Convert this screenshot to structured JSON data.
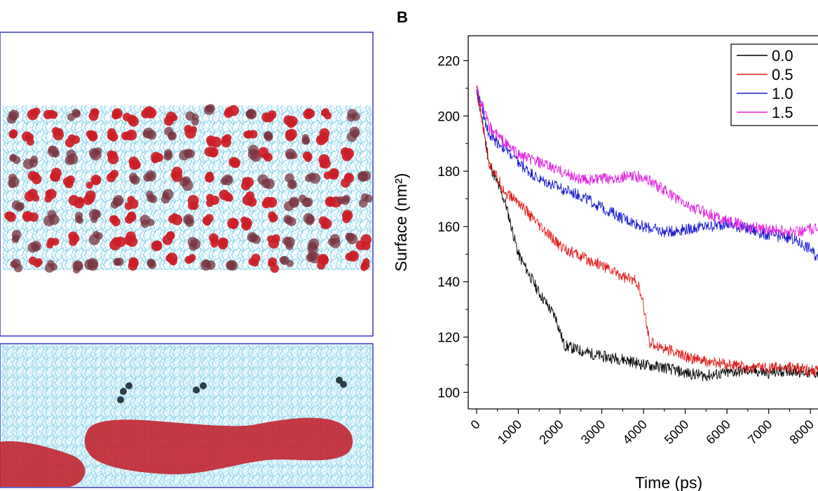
{
  "figure": {
    "panel_label": "B"
  },
  "chart_data": {
    "type": "line",
    "xlabel": "Time (ps)",
    "ylabel": "Surface (nm²)",
    "xlim": [
      -200,
      8400
    ],
    "ylim": [
      94,
      229
    ],
    "xticks": [
      0,
      1000,
      2000,
      3000,
      4000,
      5000,
      6000,
      7000,
      8000
    ],
    "yticks": [
      100,
      120,
      140,
      160,
      180,
      200,
      220
    ],
    "grid": false,
    "legend_position": "top-right",
    "series": [
      {
        "name": "0.0",
        "color": "#000000",
        "points": [
          [
            0,
            210
          ],
          [
            300,
            183
          ],
          [
            700,
            168
          ],
          [
            1000,
            150
          ],
          [
            1500,
            136
          ],
          [
            1900,
            127
          ],
          [
            2100,
            117
          ],
          [
            2500,
            115
          ],
          [
            3000,
            113
          ],
          [
            3500,
            112
          ],
          [
            4000,
            110
          ],
          [
            4500,
            109
          ],
          [
            5000,
            107
          ],
          [
            5500,
            106
          ],
          [
            6000,
            107
          ],
          [
            6500,
            108
          ],
          [
            7000,
            107
          ],
          [
            7500,
            108
          ],
          [
            8000,
            107
          ],
          [
            8400,
            107
          ]
        ]
      },
      {
        "name": "0.5",
        "color": "#e01818",
        "points": [
          [
            0,
            210
          ],
          [
            300,
            183
          ],
          [
            700,
            172
          ],
          [
            1000,
            169
          ],
          [
            1500,
            160
          ],
          [
            2000,
            153
          ],
          [
            2500,
            149
          ],
          [
            3000,
            146
          ],
          [
            3500,
            142
          ],
          [
            3850,
            140
          ],
          [
            4000,
            131
          ],
          [
            4150,
            118
          ],
          [
            4500,
            116
          ],
          [
            5000,
            113
          ],
          [
            5500,
            111
          ],
          [
            6000,
            110
          ],
          [
            6500,
            109
          ],
          [
            7000,
            109
          ],
          [
            7500,
            109
          ],
          [
            8000,
            108
          ],
          [
            8400,
            108
          ]
        ]
      },
      {
        "name": "1.0",
        "color": "#1a1ad0",
        "points": [
          [
            0,
            210
          ],
          [
            300,
            193
          ],
          [
            700,
            188
          ],
          [
            1000,
            183
          ],
          [
            1500,
            177
          ],
          [
            2000,
            174
          ],
          [
            2500,
            171
          ],
          [
            3000,
            167
          ],
          [
            3500,
            163
          ],
          [
            4000,
            160
          ],
          [
            4500,
            158
          ],
          [
            5000,
            159
          ],
          [
            5500,
            160
          ],
          [
            6000,
            161
          ],
          [
            6500,
            159
          ],
          [
            7000,
            157
          ],
          [
            7500,
            156
          ],
          [
            8000,
            152
          ],
          [
            8400,
            144
          ]
        ]
      },
      {
        "name": "1.5",
        "color": "#e020e0",
        "points": [
          [
            0,
            210
          ],
          [
            300,
            196
          ],
          [
            700,
            190
          ],
          [
            1000,
            186
          ],
          [
            1500,
            183
          ],
          [
            2000,
            180
          ],
          [
            2500,
            177
          ],
          [
            3000,
            177
          ],
          [
            3500,
            178
          ],
          [
            4000,
            178
          ],
          [
            4500,
            173
          ],
          [
            5000,
            168
          ],
          [
            5500,
            165
          ],
          [
            6000,
            162
          ],
          [
            6500,
            160
          ],
          [
            7000,
            159
          ],
          [
            7500,
            158
          ],
          [
            8000,
            159
          ],
          [
            8400,
            159
          ]
        ]
      }
    ]
  }
}
